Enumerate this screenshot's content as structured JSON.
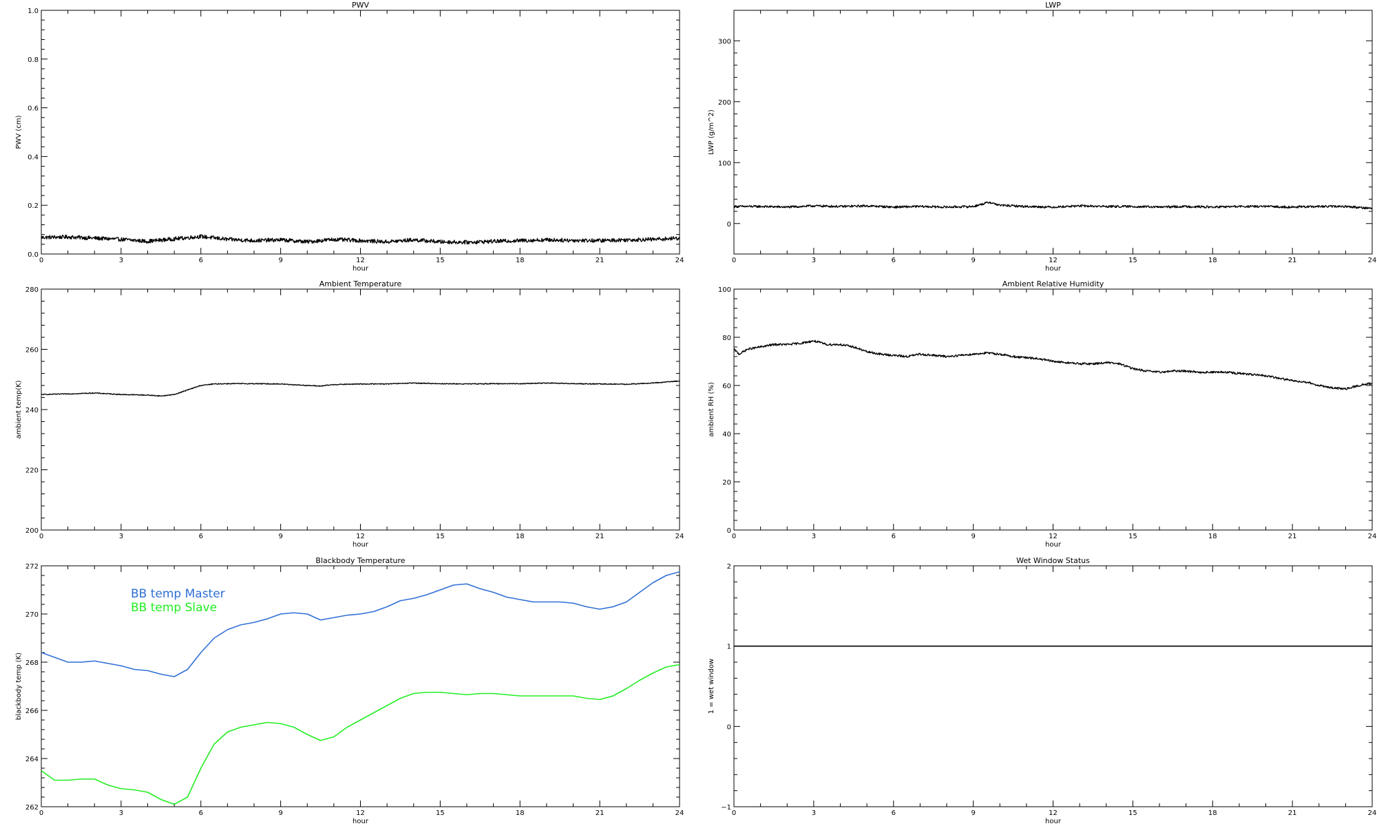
{
  "chart_data": [
    {
      "id": "pwv",
      "type": "line",
      "title": "PWV",
      "xlabel": "hour",
      "ylabel": "PWV (cm)",
      "xlim": [
        0,
        24
      ],
      "ylim": [
        0,
        1.0
      ],
      "xticks": [
        0,
        3,
        6,
        9,
        12,
        15,
        18,
        21,
        24
      ],
      "yticks": [
        0.0,
        0.2,
        0.4,
        0.6,
        0.8,
        1.0
      ],
      "ytick_labels": [
        "0.0",
        "0.2",
        "0.4",
        "0.6",
        "0.8",
        "1.0"
      ],
      "grid": false,
      "series": [
        {
          "color": "#000000",
          "noise": 0.008,
          "x": [
            0,
            1,
            2,
            3,
            4,
            5,
            6,
            7,
            8,
            9,
            10,
            11,
            12,
            13,
            14,
            15,
            16,
            17,
            18,
            19,
            20,
            21,
            22,
            23,
            24
          ],
          "y": [
            0.068,
            0.07,
            0.065,
            0.06,
            0.052,
            0.062,
            0.072,
            0.06,
            0.055,
            0.058,
            0.05,
            0.06,
            0.055,
            0.05,
            0.058,
            0.05,
            0.048,
            0.052,
            0.055,
            0.058,
            0.056,
            0.055,
            0.058,
            0.06,
            0.065
          ]
        }
      ]
    },
    {
      "id": "lwp",
      "type": "line",
      "title": "LWP",
      "xlabel": "hour",
      "ylabel": "LWP (g/m^2)",
      "xlim": [
        0,
        24
      ],
      "ylim": [
        -50,
        350
      ],
      "xticks": [
        0,
        3,
        6,
        9,
        12,
        15,
        18,
        21,
        24
      ],
      "yticks": [
        0,
        100,
        200,
        300
      ],
      "ytick_labels": [
        "0",
        "100",
        "200",
        "300"
      ],
      "grid": false,
      "series": [
        {
          "color": "#000000",
          "noise": 1.8,
          "x": [
            0,
            1,
            2,
            3,
            4,
            5,
            6,
            7,
            8,
            9,
            9.6,
            10,
            11,
            12,
            13,
            14,
            15,
            16,
            17,
            18,
            19,
            20,
            21,
            22,
            23,
            24
          ],
          "y": [
            28,
            28,
            27,
            29,
            28,
            29,
            27,
            28,
            27,
            28,
            35,
            30,
            28,
            27,
            29,
            28,
            28,
            27,
            28,
            27,
            28,
            28,
            27,
            28,
            28,
            25
          ]
        }
      ]
    },
    {
      "id": "ambient-temp",
      "type": "line",
      "title": "Ambient Temperature",
      "xlabel": "hour",
      "ylabel": "ambient temp(K)",
      "xlim": [
        0,
        24
      ],
      "ylim": [
        200,
        280
      ],
      "xticks": [
        0,
        3,
        6,
        9,
        12,
        15,
        18,
        21,
        24
      ],
      "yticks": [
        200,
        220,
        240,
        260,
        280
      ],
      "ytick_labels": [
        "200",
        "220",
        "240",
        "260",
        "280"
      ],
      "grid": false,
      "series": [
        {
          "color": "#000000",
          "noise": 0.15,
          "x": [
            0,
            1,
            2,
            3,
            4,
            4.5,
            5,
            5.5,
            6,
            6.5,
            7,
            8,
            9,
            10,
            10.5,
            11,
            12,
            13,
            14,
            15,
            16,
            17,
            18,
            19,
            20,
            21,
            22,
            23,
            24
          ],
          "y": [
            245,
            245.2,
            245.5,
            245,
            244.8,
            244.5,
            245,
            246.5,
            248,
            248.5,
            248.6,
            248.6,
            248.5,
            248,
            247.8,
            248.3,
            248.5,
            248.5,
            248.8,
            248.6,
            248.5,
            248.6,
            248.6,
            248.8,
            248.6,
            248.5,
            248.4,
            248.8,
            249.5
          ]
        }
      ]
    },
    {
      "id": "ambient-rh",
      "type": "line",
      "title": "Ambient Relative Humidity",
      "xlabel": "hour",
      "ylabel": "ambient RH (%)",
      "xlim": [
        0,
        24
      ],
      "ylim": [
        0,
        100
      ],
      "xticks": [
        0,
        3,
        6,
        9,
        12,
        15,
        18,
        21,
        24
      ],
      "yticks": [
        0,
        20,
        40,
        60,
        80,
        100
      ],
      "ytick_labels": [
        "0",
        "20",
        "40",
        "60",
        "80",
        "100"
      ],
      "grid": false,
      "series": [
        {
          "color": "#000000",
          "noise": 0.45,
          "x": [
            0,
            0.2,
            0.5,
            1,
            1.5,
            2,
            2.5,
            3,
            3.5,
            4,
            4.5,
            5,
            5.5,
            6,
            6.5,
            7,
            7.5,
            8,
            8.5,
            9,
            9.5,
            10,
            10.5,
            11,
            11.5,
            12,
            12.5,
            13,
            13.5,
            14,
            14.5,
            15,
            15.5,
            16,
            16.5,
            17,
            17.5,
            18,
            18.5,
            19,
            19.5,
            20,
            20.5,
            21,
            21.5,
            22,
            22.5,
            23,
            23.5,
            24
          ],
          "y": [
            75,
            73,
            75,
            76,
            77,
            77,
            77.5,
            78.5,
            77,
            77,
            76,
            74,
            73,
            72.5,
            72,
            73,
            72.5,
            72,
            72.5,
            73,
            73.5,
            73,
            72,
            71.5,
            71,
            70,
            69.5,
            69,
            69,
            69.5,
            69,
            67,
            66,
            65.5,
            66,
            66,
            65.5,
            65.5,
            65.5,
            65,
            64.5,
            64,
            63,
            62,
            61.5,
            60,
            59,
            58.5,
            60,
            61
          ]
        }
      ]
    },
    {
      "id": "blackbody-temp",
      "type": "line",
      "title": "Blackbody Temperature",
      "xlabel": "hour",
      "ylabel": "blackbody temp (K)",
      "xlim": [
        0,
        24
      ],
      "ylim": [
        262,
        272
      ],
      "xticks": [
        0,
        3,
        6,
        9,
        12,
        15,
        18,
        21,
        24
      ],
      "yticks": [
        262,
        264,
        266,
        268,
        270,
        272
      ],
      "ytick_labels": [
        "262",
        "264",
        "266",
        "268",
        "270",
        "272"
      ],
      "grid": false,
      "legend": {
        "placement": "top-left",
        "entries": [
          "BB temp Master",
          "BB temp Slave"
        ]
      },
      "series": [
        {
          "name": "BB temp Master",
          "color": "#2f6fd6",
          "noise": 0,
          "x": [
            0,
            0.5,
            1,
            1.5,
            2,
            2.5,
            3,
            3.5,
            4,
            4.5,
            5,
            5.5,
            6,
            6.5,
            7,
            7.5,
            8,
            8.5,
            9,
            9.5,
            10,
            10.5,
            11,
            11.5,
            12,
            12.5,
            13,
            13.5,
            14,
            14.5,
            15,
            15.5,
            16,
            16.5,
            17,
            17.5,
            18,
            18.5,
            19,
            19.5,
            20,
            20.5,
            21,
            21.5,
            22,
            22.5,
            23,
            23.5,
            24
          ],
          "y": [
            268.4,
            268.2,
            268.0,
            268.0,
            268.05,
            267.95,
            267.85,
            267.7,
            267.65,
            267.5,
            267.4,
            267.7,
            268.4,
            269.0,
            269.35,
            269.55,
            269.65,
            269.8,
            270.0,
            270.05,
            270.0,
            269.75,
            269.85,
            269.95,
            270.0,
            270.1,
            270.3,
            270.55,
            270.65,
            270.8,
            271.0,
            271.2,
            271.25,
            271.05,
            270.9,
            270.7,
            270.6,
            270.5,
            270.5,
            270.5,
            270.45,
            270.3,
            270.2,
            270.3,
            270.5,
            270.9,
            271.3,
            271.6,
            271.75
          ]
        },
        {
          "name": "BB temp Slave",
          "color": "#22ee22",
          "noise": 0,
          "x": [
            0,
            0.5,
            1,
            1.5,
            2,
            2.5,
            3,
            3.5,
            4,
            4.5,
            5,
            5.5,
            6,
            6.5,
            7,
            7.5,
            8,
            8.5,
            9,
            9.5,
            10,
            10.5,
            11,
            11.5,
            12,
            12.5,
            13,
            13.5,
            14,
            14.5,
            15,
            15.5,
            16,
            16.5,
            17,
            17.5,
            18,
            18.5,
            19,
            19.5,
            20,
            20.5,
            21,
            21.5,
            22,
            22.5,
            23,
            23.5,
            24
          ],
          "y": [
            263.5,
            263.1,
            263.1,
            263.15,
            263.15,
            262.9,
            262.75,
            262.7,
            262.6,
            262.3,
            262.1,
            262.4,
            263.6,
            264.6,
            265.1,
            265.3,
            265.4,
            265.5,
            265.45,
            265.3,
            265.0,
            264.75,
            264.9,
            265.3,
            265.6,
            265.9,
            266.2,
            266.5,
            266.7,
            266.75,
            266.75,
            266.7,
            266.65,
            266.7,
            266.7,
            266.65,
            266.6,
            266.6,
            266.6,
            266.6,
            266.6,
            266.5,
            266.45,
            266.6,
            266.9,
            267.25,
            267.55,
            267.8,
            267.9
          ]
        }
      ]
    },
    {
      "id": "wet-window",
      "type": "line",
      "title": "Wet Window Status",
      "xlabel": "hour",
      "ylabel": "1 = wet window",
      "xlim": [
        0,
        24
      ],
      "ylim": [
        -1,
        2
      ],
      "xticks": [
        0,
        3,
        6,
        9,
        12,
        15,
        18,
        21,
        24
      ],
      "yticks": [
        -1,
        0,
        1,
        2
      ],
      "ytick_labels": [
        "−1",
        "0",
        "1",
        "2"
      ],
      "grid": false,
      "series": [
        {
          "color": "#000000",
          "noise": 0,
          "x": [
            0,
            24
          ],
          "y": [
            1,
            1
          ]
        }
      ]
    }
  ]
}
